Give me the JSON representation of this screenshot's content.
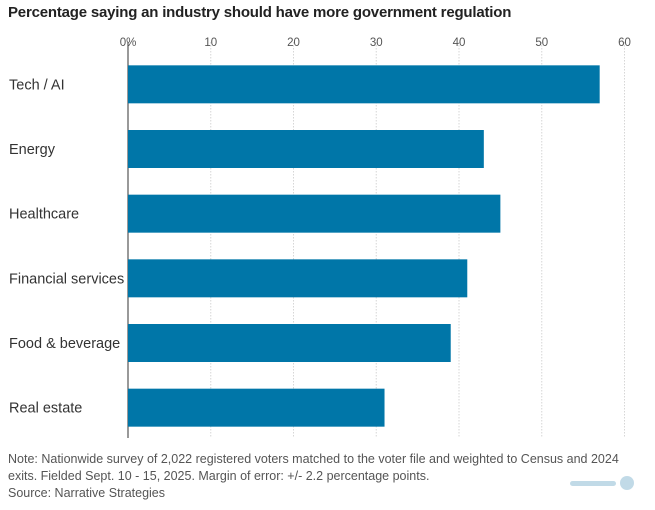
{
  "chart_data": {
    "type": "bar",
    "orientation": "horizontal",
    "title": "Percentage saying an industry should have more government regulation",
    "categories": [
      "Tech / AI",
      "Energy",
      "Healthcare",
      "Financial services",
      "Food & beverage",
      "Real estate"
    ],
    "values": [
      57,
      43,
      45,
      41,
      39,
      31
    ],
    "xlim": [
      0,
      60
    ],
    "xticks": [
      "0%",
      "10",
      "20",
      "30",
      "40",
      "50",
      "60"
    ],
    "tick_values": [
      0,
      10,
      20,
      30,
      40,
      50,
      60
    ],
    "bar_color": "#0076a8",
    "grid": true,
    "tick_position": "top"
  },
  "note": "Note: Nationwide survey of 2,022 registered voters matched to the voter file and weighted to Census and 2024 exits. Fielded Sept. 10 - 15, 2025. Margin of error: +/- 2.2 percentage points.",
  "source": "Source: Narrative Strategies",
  "watermark": {
    "icon": "watermark-logo-icon"
  }
}
